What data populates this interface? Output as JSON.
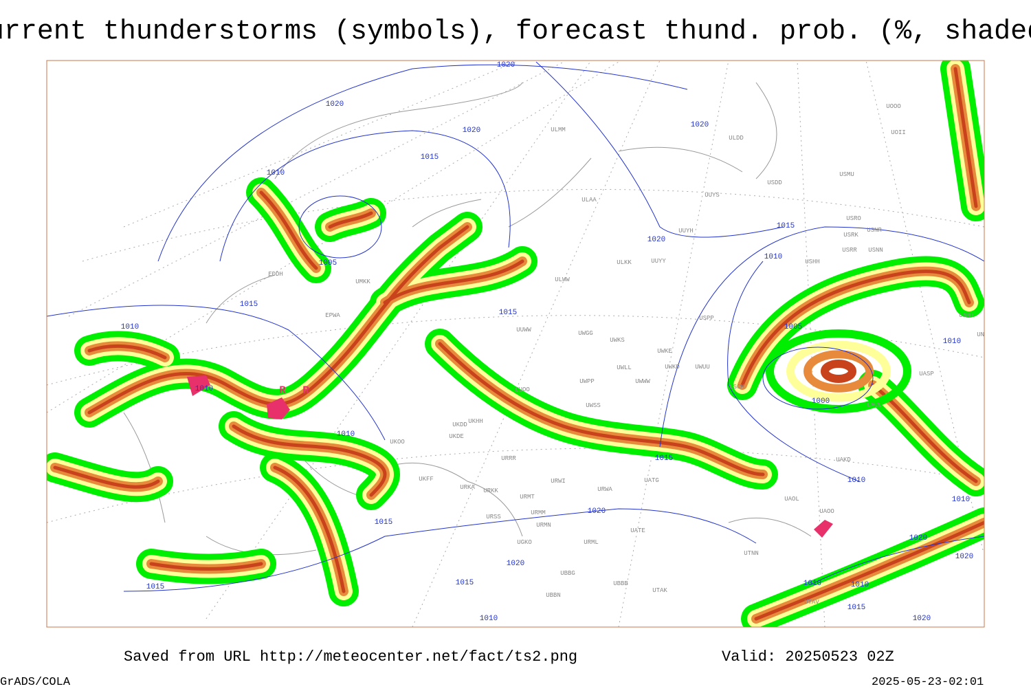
{
  "header": {
    "title": "Current thunderstorms (symbols), forecast thund. prob. (%, shaded)"
  },
  "map": {
    "isobar_labels": [
      1020,
      1020,
      1020,
      1015,
      1010,
      1005,
      1015,
      1010,
      1015,
      1010,
      1010,
      1020,
      1015,
      1020,
      1010,
      1005,
      1000,
      1010,
      1015,
      1010,
      1010,
      1020,
      1015,
      1020,
      1015,
      1015,
      1010,
      1020,
      1020,
      1010,
      1010,
      1015,
      1020
    ],
    "stations": [
      "ULMM",
      "ULDD",
      "UUYS",
      "USDD",
      "USMU",
      "ULAA",
      "UUYH",
      "USRO",
      "USRK",
      "USNR",
      "USRR",
      "USNN",
      "USHH",
      "ULKK",
      "UUYY",
      "ULWW",
      "UMKK",
      "EDDH",
      "EPWA",
      "UUWW",
      "UWGG",
      "UWKS",
      "UWKE",
      "UWLL",
      "UWKD",
      "UWUU",
      "UWPP",
      "UWWW",
      "UUOO",
      "UWSS",
      "UKHH",
      "UKDD",
      "UKDE",
      "UKOO",
      "UKFF",
      "URKA",
      "URKK",
      "URRR",
      "URWI",
      "URWA",
      "URMT",
      "URMM",
      "URSS",
      "URMN",
      "URML",
      "UGKO",
      "UATG",
      "UATE",
      "UBBG",
      "UBBN",
      "UBBB",
      "UTAK",
      "UTNN",
      "UAOL",
      "UAOO",
      "UAKD",
      "USPP",
      "UACC",
      "UASP",
      "UNNT",
      "UNBB",
      "UOOO",
      "UOII",
      "USCM",
      "UTAV"
    ],
    "storm_symbols": [
      "R",
      "R"
    ]
  },
  "footer": {
    "source": "Saved from URL http://meteocenter.net/fact/ts2.png",
    "valid": "Valid: 20250523 02Z",
    "software": "GrADS/COLA",
    "timestamp": "2025-05-23-02:01"
  }
}
